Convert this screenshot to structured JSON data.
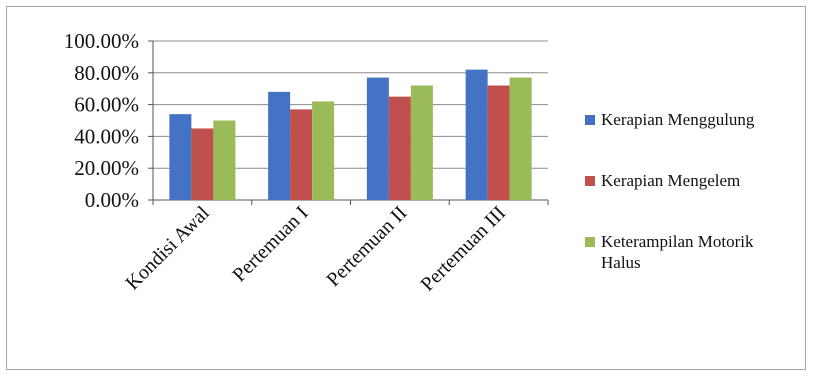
{
  "chart_data": {
    "type": "bar",
    "categories": [
      "Kondisi Awal",
      "Pertemuan I",
      "Pertemuan II",
      "Pertemuan III"
    ],
    "series": [
      {
        "name": "Kerapian Menggulung",
        "values": [
          54,
          68,
          77,
          82
        ],
        "color": "#4472C4"
      },
      {
        "name": "Kerapian Mengelem",
        "values": [
          45,
          57,
          65,
          72
        ],
        "color": "#C0504D"
      },
      {
        "name": "Keterampilan Motorik Halus",
        "values": [
          50,
          62,
          72,
          77
        ],
        "color": "#9BBB59"
      }
    ],
    "yticks": [
      "0.00%",
      "20.00%",
      "40.00%",
      "60.00%",
      "80.00%",
      "100.00%"
    ],
    "ylim": [
      0,
      100
    ],
    "grid": true,
    "legend_position": "right",
    "title": "",
    "xlabel": "",
    "ylabel": ""
  }
}
